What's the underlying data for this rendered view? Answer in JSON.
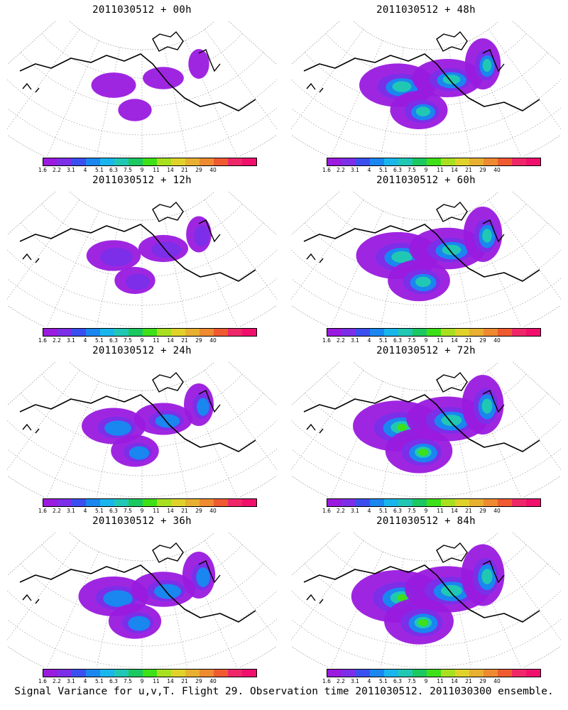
{
  "panels": [
    {
      "title": "2011030512 + 00h",
      "level": 0.1
    },
    {
      "title": "2011030512 + 48h",
      "level": 0.6
    },
    {
      "title": "2011030512 + 12h",
      "level": 0.25
    },
    {
      "title": "2011030512 + 60h",
      "level": 0.7
    },
    {
      "title": "2011030512 + 24h",
      "level": 0.4
    },
    {
      "title": "2011030512 + 72h",
      "level": 0.8
    },
    {
      "title": "2011030512 + 36h",
      "level": 0.5
    },
    {
      "title": "2011030512 + 84h",
      "level": 0.85
    }
  ],
  "colorbar": {
    "colors": [
      "#9a1adf",
      "#7c2ee8",
      "#3b4ff0",
      "#1a86f0",
      "#19b6ee",
      "#20c8b4",
      "#1cc860",
      "#3ee018",
      "#a8e020",
      "#e0d22a",
      "#e8b030",
      "#ee8a30",
      "#f05a30",
      "#ee2868",
      "#f0106c"
    ],
    "labels": [
      "1.6",
      "2.2",
      "3.1",
      "4",
      "5.1",
      "6.3",
      "7.5",
      "9",
      "11",
      "14",
      "21",
      "29",
      "40"
    ]
  },
  "caption": "Signal Variance for u,v,T. Flight 29. Observation time 2011030512. 2011030300 ensemble."
}
